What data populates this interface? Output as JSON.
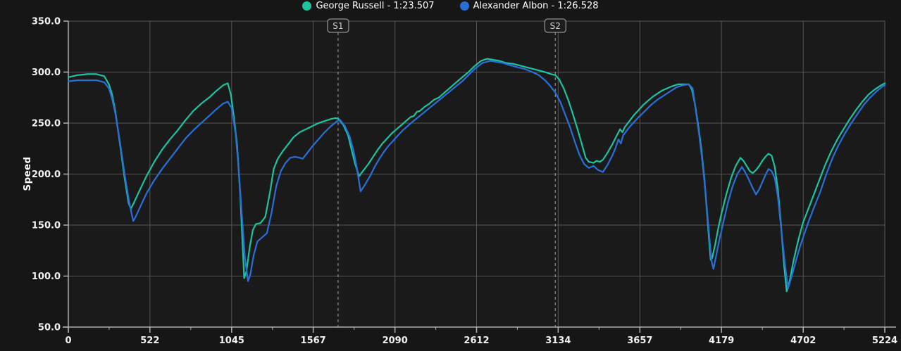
{
  "chart_data": {
    "type": "line",
    "title": "",
    "xlabel": "",
    "ylabel": "Speed",
    "x_range": [
      0,
      5224
    ],
    "y_range": [
      50,
      350
    ],
    "grid": true,
    "legend_position": "top-center",
    "x_ticks": [
      {
        "value": 0,
        "label": "0"
      },
      {
        "value": 522,
        "label": "522"
      },
      {
        "value": 1045,
        "label": "1045"
      },
      {
        "value": 1567,
        "label": "1567"
      },
      {
        "value": 2090,
        "label": "2090"
      },
      {
        "value": 2612,
        "label": "2612"
      },
      {
        "value": 3134,
        "label": "3134"
      },
      {
        "value": 3657,
        "label": "3657"
      },
      {
        "value": 4179,
        "label": "4179"
      },
      {
        "value": 4702,
        "label": "4702"
      },
      {
        "value": 5224,
        "label": "5224"
      }
    ],
    "y_ticks": [
      {
        "value": 50,
        "label": "50.0"
      },
      {
        "value": 100,
        "label": "100.0"
      },
      {
        "value": 150,
        "label": "150.0"
      },
      {
        "value": 200,
        "label": "200.0"
      },
      {
        "value": 250,
        "label": "250.0"
      },
      {
        "value": 300,
        "label": "300.0"
      },
      {
        "value": 350,
        "label": "350.0"
      }
    ],
    "annotations": [
      {
        "type": "vline",
        "label": "S1",
        "x": 1726
      },
      {
        "type": "vline",
        "label": "S2",
        "x": 3116
      }
    ],
    "colors": {
      "plot_background": "#1a1a1a",
      "grid": "#555555",
      "axis": "#b0b0b0",
      "tick_label": "#f2f2f2",
      "sector_line": "#8f8f8f",
      "sector_text": "#cccccc",
      "sector_box_bg": "#1d1d1d",
      "legend_text": "#ffffff"
    },
    "series": [
      {
        "name": "George Russell",
        "lap_time": "1:23.507",
        "label": "George Russell - 1:23.507",
        "color": "#1cc3a0",
        "x": [
          0,
          60,
          120,
          180,
          230,
          260,
          280,
          300,
          330,
          360,
          385,
          400,
          420,
          450,
          500,
          550,
          600,
          650,
          700,
          750,
          800,
          850,
          900,
          950,
          990,
          1020,
          1040,
          1060,
          1080,
          1100,
          1115,
          1125,
          1140,
          1160,
          1180,
          1200,
          1230,
          1260,
          1290,
          1314,
          1340,
          1370,
          1400,
          1440,
          1480,
          1520,
          1560,
          1600,
          1640,
          1680,
          1710,
          1730,
          1760,
          1790,
          1815,
          1835,
          1860,
          1890,
          1920,
          1950,
          1980,
          2010,
          2040,
          2070,
          2100,
          2130,
          2160,
          2190,
          2210,
          2230,
          2250,
          2280,
          2310,
          2340,
          2370,
          2400,
          2430,
          2460,
          2490,
          2520,
          2560,
          2600,
          2640,
          2680,
          2720,
          2760,
          2800,
          2850,
          2900,
          2950,
          3000,
          3050,
          3090,
          3116,
          3140,
          3170,
          3200,
          3230,
          3260,
          3290,
          3310,
          3330,
          3360,
          3380,
          3400,
          3420,
          3450,
          3480,
          3510,
          3530,
          3545,
          3560,
          3590,
          3620,
          3650,
          3680,
          3710,
          3740,
          3770,
          3800,
          3830,
          3860,
          3900,
          3940,
          3970,
          3990,
          4010,
          4030,
          4050,
          4070,
          4085,
          4100,
          4110,
          4120,
          4140,
          4160,
          4180,
          4210,
          4240,
          4270,
          4300,
          4320,
          4340,
          4360,
          4380,
          4400,
          4420,
          4440,
          4460,
          4480,
          4500,
          4520,
          4540,
          4560,
          4580,
          4596,
          4615,
          4640,
          4670,
          4700,
          4730,
          4760,
          4800,
          4840,
          4880,
          4920,
          4960,
          5000,
          5040,
          5080,
          5120,
          5160,
          5200,
          5224
        ],
        "y": [
          295,
          297,
          298,
          298,
          296,
          288,
          278,
          262,
          230,
          196,
          172,
          166,
          172,
          182,
          198,
          212,
          224,
          234,
          243,
          253,
          262,
          269,
          275,
          282,
          287,
          289,
          278,
          255,
          228,
          180,
          130,
          98,
          105,
          128,
          145,
          151,
          152,
          158,
          182,
          205,
          215,
          222,
          228,
          236,
          241,
          244,
          247,
          250,
          252,
          254,
          255,
          254,
          248,
          238,
          222,
          210,
          198,
          204,
          210,
          217,
          224,
          230,
          235,
          240,
          244,
          248,
          252,
          256,
          257,
          261,
          262,
          266,
          269,
          273,
          275,
          279,
          283,
          287,
          291,
          295,
          300,
          306,
          311,
          313,
          312,
          311,
          309,
          308,
          306,
          304,
          302,
          300,
          298,
          297,
          293,
          284,
          272,
          258,
          243,
          227,
          216,
          212,
          211,
          213,
          212,
          214,
          221,
          229,
          238,
          244,
          241,
          246,
          252,
          258,
          263,
          268,
          272,
          276,
          279,
          282,
          284,
          286,
          288,
          288,
          288,
          283,
          268,
          248,
          225,
          195,
          165,
          135,
          116,
          118,
          132,
          148,
          162,
          180,
          196,
          208,
          216,
          213,
          208,
          203,
          201,
          204,
          208,
          213,
          217,
          220,
          218,
          207,
          185,
          150,
          110,
          85,
          95,
          115,
          135,
          152,
          164,
          176,
          192,
          208,
          222,
          234,
          244,
          254,
          263,
          271,
          278,
          283,
          287,
          289
        ]
      },
      {
        "name": "Alexander Albon",
        "lap_time": "1:26.528",
        "label": "Alexander Albon - 1:26.528",
        "color": "#2a6fd8",
        "x": [
          0,
          60,
          120,
          180,
          230,
          260,
          280,
          300,
          330,
          360,
          390,
          415,
          430,
          460,
          500,
          550,
          600,
          650,
          700,
          750,
          800,
          850,
          900,
          950,
          990,
          1020,
          1045,
          1070,
          1090,
          1110,
          1130,
          1150,
          1165,
          1185,
          1210,
          1240,
          1270,
          1300,
          1330,
          1360,
          1390,
          1420,
          1450,
          1480,
          1500,
          1530,
          1560,
          1600,
          1640,
          1680,
          1720,
          1740,
          1770,
          1800,
          1825,
          1845,
          1870,
          1900,
          1930,
          1960,
          1990,
          2020,
          2050,
          2080,
          2110,
          2140,
          2170,
          2200,
          2240,
          2280,
          2320,
          2360,
          2400,
          2440,
          2480,
          2520,
          2560,
          2600,
          2650,
          2700,
          2740,
          2780,
          2820,
          2870,
          2920,
          2970,
          3010,
          3050,
          3080,
          3116,
          3150,
          3180,
          3210,
          3240,
          3270,
          3300,
          3330,
          3360,
          3390,
          3420,
          3450,
          3480,
          3500,
          3520,
          3535,
          3550,
          3570,
          3590,
          3620,
          3650,
          3690,
          3730,
          3770,
          3810,
          3850,
          3890,
          3930,
          3970,
          3995,
          4015,
          4035,
          4055,
          4075,
          4095,
          4115,
          4128,
          4145,
          4165,
          4190,
          4220,
          4250,
          4280,
          4310,
          4330,
          4350,
          4380,
          4400,
          4420,
          4440,
          4460,
          4480,
          4500,
          4520,
          4540,
          4560,
          4585,
          4605,
          4625,
          4650,
          4680,
          4710,
          4740,
          4770,
          4810,
          4850,
          4890,
          4930,
          4970,
          5010,
          5050,
          5090,
          5130,
          5170,
          5210,
          5224
        ],
        "y": [
          291,
          292,
          292,
          292,
          290,
          284,
          274,
          260,
          232,
          200,
          172,
          154,
          158,
          168,
          181,
          194,
          205,
          215,
          225,
          235,
          243,
          250,
          257,
          264,
          269,
          271,
          265,
          240,
          205,
          160,
          118,
          95,
          102,
          120,
          134,
          138,
          142,
          162,
          188,
          203,
          211,
          216,
          217,
          216,
          215,
          221,
          227,
          234,
          241,
          247,
          252,
          253,
          247,
          237,
          223,
          207,
          183,
          190,
          198,
          207,
          215,
          222,
          228,
          233,
          238,
          243,
          247,
          251,
          256,
          261,
          266,
          271,
          276,
          281,
          286,
          291,
          297,
          303,
          309,
          311,
          310,
          309,
          307,
          305,
          303,
          300,
          297,
          292,
          287,
          280,
          270,
          258,
          246,
          232,
          219,
          210,
          206,
          208,
          204,
          202,
          209,
          218,
          225,
          234,
          230,
          238,
          242,
          246,
          251,
          256,
          262,
          268,
          273,
          277,
          281,
          285,
          287,
          288,
          284,
          262,
          240,
          215,
          185,
          150,
          115,
          107,
          120,
          135,
          152,
          172,
          188,
          200,
          207,
          202,
          196,
          186,
          180,
          185,
          192,
          199,
          205,
          203,
          196,
          178,
          148,
          112,
          88,
          98,
          112,
          128,
          142,
          155,
          167,
          182,
          200,
          216,
          229,
          240,
          250,
          259,
          268,
          275,
          281,
          286,
          287
        ]
      }
    ]
  }
}
